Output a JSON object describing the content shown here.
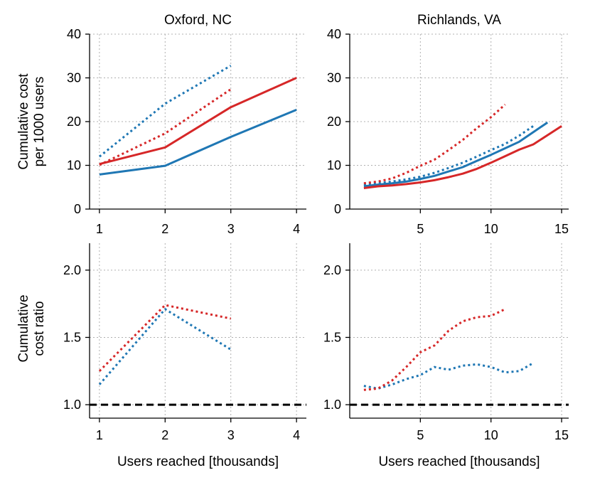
{
  "chart_data": [
    {
      "type": "line",
      "title": "Oxford, NC",
      "xlabel": "",
      "ylabel": "Cumulative cost per 1000 users",
      "ylabel_lines": [
        "Cumulative cost",
        "per 1000 users"
      ],
      "xlim": [
        0.85,
        4.15
      ],
      "ylim": [
        0,
        40
      ],
      "xticks": [
        1,
        2,
        3,
        4
      ],
      "yticks": [
        0,
        10,
        20,
        30,
        40
      ],
      "grid": true,
      "series": [
        {
          "color": "#1f77b4",
          "style": "solid",
          "x": [
            1,
            2,
            3,
            4
          ],
          "y": [
            7.9,
            9.9,
            16.5,
            22.7
          ]
        },
        {
          "color": "#d62728",
          "style": "solid",
          "x": [
            1,
            2,
            3,
            4
          ],
          "y": [
            10.3,
            14.1,
            23.3,
            30.0
          ]
        },
        {
          "color": "#1f77b4",
          "style": "dotted",
          "x": [
            1,
            2,
            3
          ],
          "y": [
            12.0,
            24.1,
            32.8
          ]
        },
        {
          "color": "#d62728",
          "style": "dotted",
          "x": [
            1,
            2,
            3
          ],
          "y": [
            10.1,
            17.3,
            27.4
          ]
        }
      ]
    },
    {
      "type": "line",
      "title": "Richlands, VA",
      "xlabel": "",
      "ylabel": "",
      "xlim": [
        0,
        15.5
      ],
      "ylim": [
        0,
        40
      ],
      "xticks": [
        5,
        10,
        15
      ],
      "yticks": [
        0,
        10,
        20,
        30,
        40
      ],
      "grid": true,
      "series": [
        {
          "color": "#1f77b4",
          "style": "solid",
          "x": [
            1,
            2,
            3,
            4,
            5,
            6,
            7,
            8,
            9,
            10,
            11,
            12,
            13,
            14
          ],
          "y": [
            5.2,
            5.6,
            5.9,
            6.3,
            6.9,
            7.6,
            8.6,
            9.6,
            11.0,
            12.4,
            13.9,
            15.4,
            17.6,
            19.8
          ]
        },
        {
          "color": "#d62728",
          "style": "solid",
          "x": [
            1,
            2,
            3,
            4,
            5,
            6,
            7,
            8,
            9,
            10,
            11,
            12,
            13,
            14,
            15
          ],
          "y": [
            4.8,
            5.2,
            5.4,
            5.7,
            6.1,
            6.6,
            7.3,
            8.1,
            9.2,
            10.6,
            12.1,
            13.6,
            14.8,
            16.9,
            19.0
          ]
        },
        {
          "color": "#1f77b4",
          "style": "dotted",
          "x": [
            1,
            2,
            3,
            4,
            5,
            6,
            7,
            8,
            9,
            10,
            11,
            12,
            13
          ],
          "y": [
            5.6,
            5.9,
            6.3,
            6.8,
            7.4,
            8.3,
            9.4,
            10.6,
            12.0,
            13.5,
            14.9,
            16.8,
            19.0
          ]
        },
        {
          "color": "#d62728",
          "style": "dotted",
          "x": [
            1,
            2,
            3,
            4,
            5,
            6,
            7,
            8,
            9,
            10,
            11
          ],
          "y": [
            5.9,
            6.3,
            7.0,
            8.3,
            9.9,
            11.3,
            13.5,
            15.8,
            18.5,
            21.0,
            23.9
          ]
        }
      ]
    },
    {
      "type": "line",
      "title": "",
      "xlabel": "Users reached [thousands]",
      "ylabel": "Cumulative cost ratio",
      "ylabel_lines": [
        "Cumulative",
        "cost ratio"
      ],
      "xlim": [
        0.85,
        4.15
      ],
      "ylim": [
        0.9,
        2.2
      ],
      "xticks": [
        1,
        2,
        3,
        4
      ],
      "yticks": [
        1.0,
        1.5,
        2.0
      ],
      "ytick_labels": [
        "1.0",
        "1.5",
        "2.0"
      ],
      "grid": true,
      "reference_line": {
        "y": 1.0,
        "color": "#000000",
        "style": "dashed"
      },
      "series": [
        {
          "color": "#1f77b4",
          "style": "dotted",
          "x": [
            1,
            2,
            3
          ],
          "y": [
            1.15,
            1.71,
            1.41
          ]
        },
        {
          "color": "#d62728",
          "style": "dotted",
          "x": [
            1,
            2,
            3
          ],
          "y": [
            1.25,
            1.74,
            1.64
          ]
        }
      ]
    },
    {
      "type": "line",
      "title": "",
      "xlabel": "Users reached [thousands]",
      "ylabel": "",
      "xlim": [
        0,
        15.5
      ],
      "ylim": [
        0.9,
        2.2
      ],
      "xticks": [
        5,
        10,
        15
      ],
      "yticks": [
        1.0,
        1.5,
        2.0
      ],
      "ytick_labels": [
        "1.0",
        "1.5",
        "2.0"
      ],
      "grid": true,
      "reference_line": {
        "y": 1.0,
        "color": "#000000",
        "style": "dashed"
      },
      "series": [
        {
          "color": "#1f77b4",
          "style": "dotted",
          "x": [
            1,
            2,
            3,
            4,
            5,
            6,
            7,
            8,
            9,
            10,
            11,
            12,
            13
          ],
          "y": [
            1.14,
            1.12,
            1.15,
            1.19,
            1.22,
            1.28,
            1.26,
            1.29,
            1.3,
            1.28,
            1.24,
            1.25,
            1.31
          ]
        },
        {
          "color": "#d62728",
          "style": "dotted",
          "x": [
            1,
            2,
            3,
            4,
            5,
            6,
            7,
            8,
            9,
            10,
            11
          ],
          "y": [
            1.11,
            1.12,
            1.18,
            1.28,
            1.39,
            1.44,
            1.55,
            1.62,
            1.65,
            1.66,
            1.71
          ]
        }
      ]
    }
  ]
}
